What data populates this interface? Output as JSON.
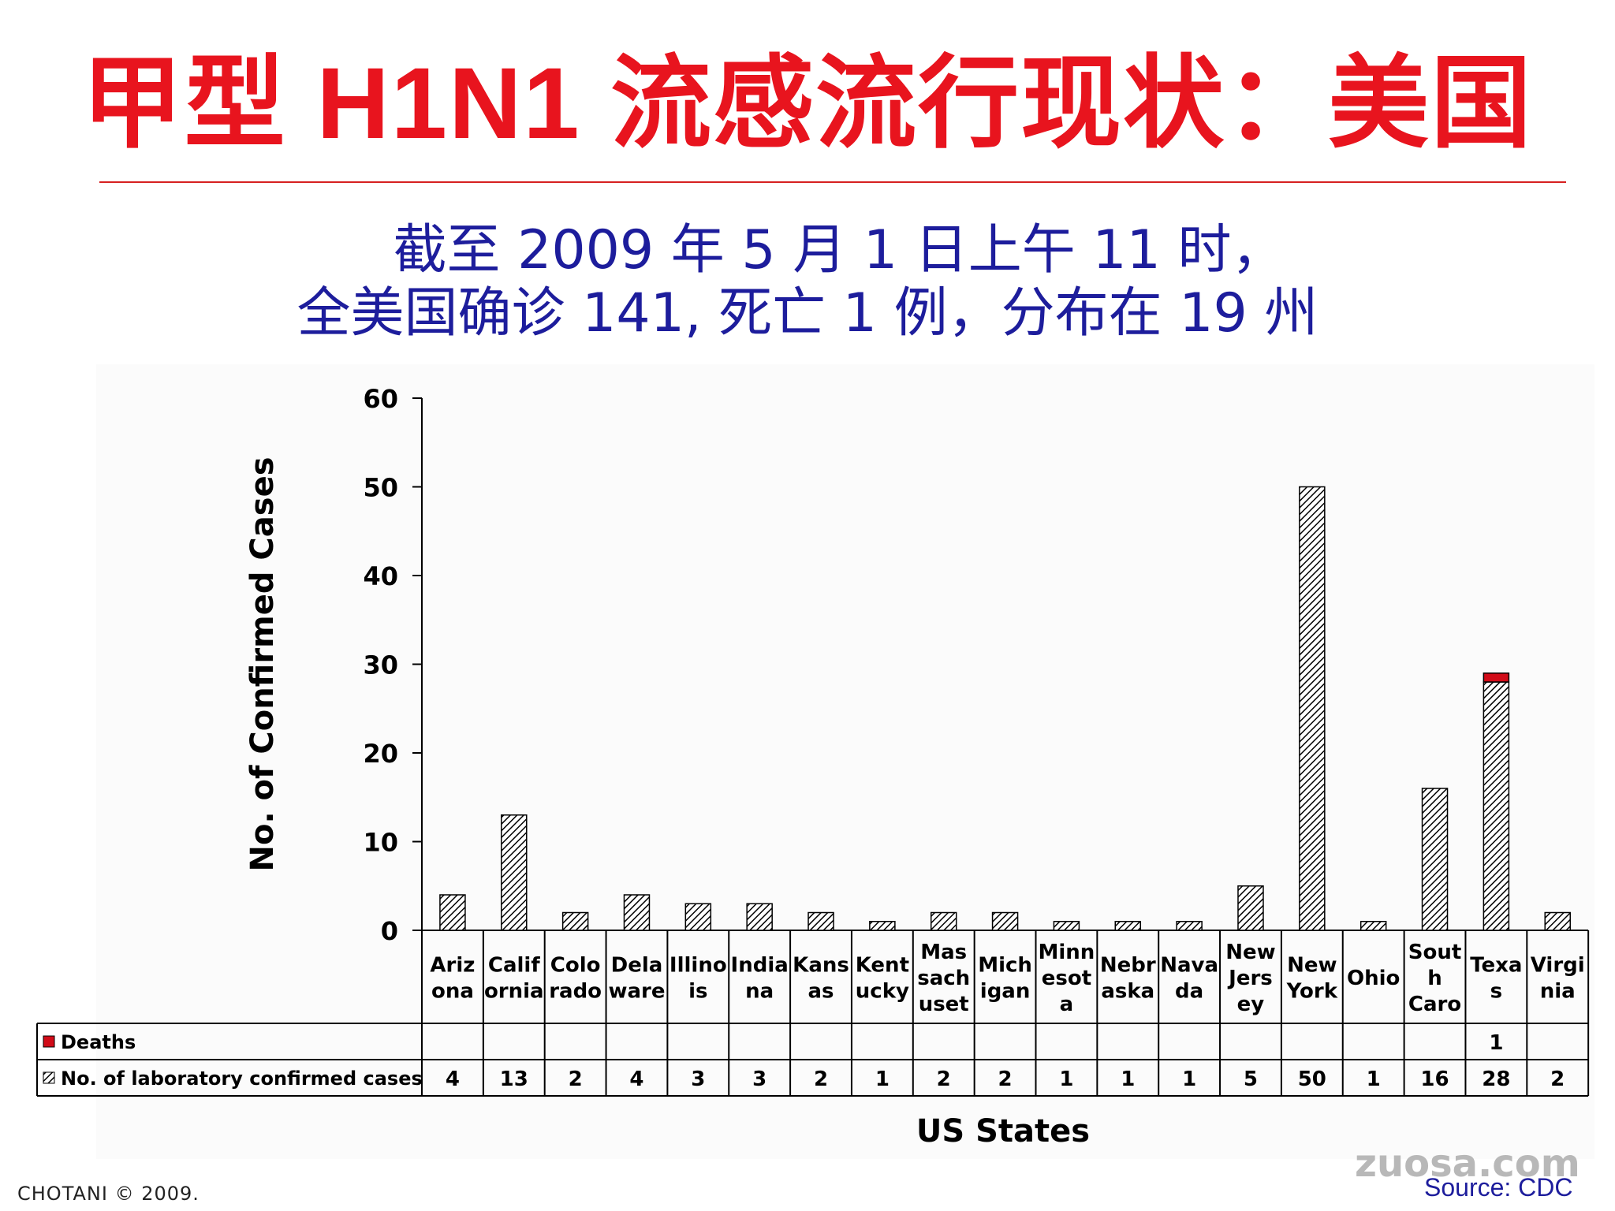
{
  "slide": {
    "title": "甲型 H1N1 流感流行现状：美国",
    "subtitle_line1": "截至 2009 年 5 月 1 日上午 11 时，",
    "subtitle_line2": "全美国确诊 141, 死亡 1 例，分布在 19 州",
    "footer_left": "CHOTANI © 2009.",
    "watermark": "zuosa.com",
    "source": "Source: CDC"
  },
  "colors": {
    "title": "#e8141e",
    "subtitle": "#1d1d9c",
    "deaths": "#d10b18",
    "bars": "#000000"
  },
  "chart_data": {
    "type": "bar",
    "stacked": true,
    "ylabel": "No. of Confirmed Cases",
    "xlabel": "US States",
    "ylim": [
      0,
      60
    ],
    "yticks": [
      0,
      10,
      20,
      30,
      40,
      50,
      60
    ],
    "categories": [
      "Arizona",
      "California",
      "Colorado",
      "Delaware",
      "Illinois",
      "Indiana",
      "Kansas",
      "Kentucky",
      "Massachusetts",
      "Michigan",
      "Minnesota",
      "Nebraska",
      "Navada",
      "New Jersey",
      "New York",
      "Ohio",
      "South Carolina",
      "Texas",
      "Virginia"
    ],
    "category_labels": [
      [
        "Ariz",
        "ona"
      ],
      [
        "Calif",
        "ornia"
      ],
      [
        "Colo",
        "rado"
      ],
      [
        "Dela",
        "ware"
      ],
      [
        "Illino",
        "is"
      ],
      [
        "India",
        "na"
      ],
      [
        "Kans",
        "as"
      ],
      [
        "Kent",
        "ucky"
      ],
      [
        "Mas",
        "sach",
        "uset"
      ],
      [
        "Mich",
        "igan"
      ],
      [
        "Minn",
        "esot",
        "a"
      ],
      [
        "Nebr",
        "aska"
      ],
      [
        "Nava",
        "da"
      ],
      [
        "New",
        "Jers",
        "ey"
      ],
      [
        "New",
        "York"
      ],
      [
        "Ohio"
      ],
      [
        "Sout",
        "h",
        "Caro"
      ],
      [
        "Texa",
        "s"
      ],
      [
        "Virgi",
        "nia"
      ]
    ],
    "series": [
      {
        "name": "No. of laboratory confirmed cases",
        "pattern": "hatched",
        "values": [
          4,
          13,
          2,
          4,
          3,
          3,
          2,
          1,
          2,
          2,
          1,
          1,
          1,
          5,
          50,
          1,
          16,
          28,
          2
        ]
      },
      {
        "name": "Deaths",
        "pattern": "solid-red",
        "values": [
          null,
          null,
          null,
          null,
          null,
          null,
          null,
          null,
          null,
          null,
          null,
          null,
          null,
          null,
          null,
          null,
          null,
          1,
          null
        ]
      }
    ],
    "legend": "table-rows-left",
    "grid": false
  }
}
